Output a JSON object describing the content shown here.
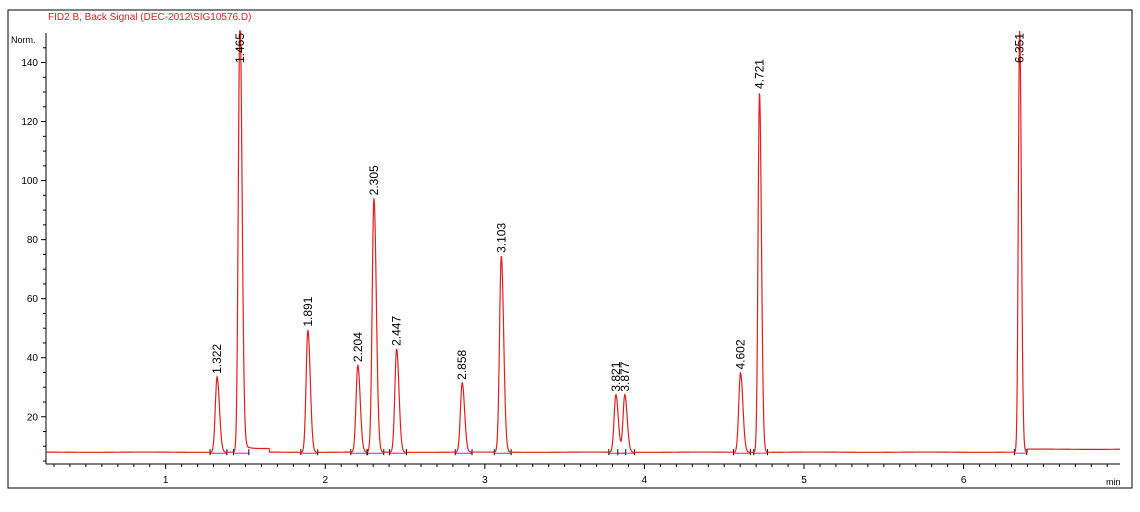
{
  "header": {
    "title": "FID2 B, Back Signal (DEC-2012\\SIG10576.D)"
  },
  "colors": {
    "signal": "#e0201e",
    "baseline": "#d014d0",
    "axis": "#000000"
  },
  "chart_data": {
    "type": "line",
    "title": "FID2 B, Back Signal (DEC-2012\\SIG10576.D)",
    "xlabel": "min",
    "ylabel": "Norm.",
    "xlim": [
      0.25,
      6.98
    ],
    "ylim": [
      4,
      150
    ],
    "x_ticks": [
      1,
      2,
      3,
      4,
      5,
      6
    ],
    "y_ticks": [
      20,
      40,
      60,
      80,
      100,
      120,
      140
    ],
    "grid": false,
    "baseline_level": 8,
    "series": [
      {
        "peaks": [
          {
            "rt": 1.322,
            "height": 33.5,
            "label": "1.322"
          },
          {
            "rt": 1.465,
            "height": 152,
            "label": "1.465"
          },
          {
            "rt": 1.891,
            "height": 49.5,
            "label": "1.891"
          },
          {
            "rt": 2.204,
            "height": 37.5,
            "label": "2.204"
          },
          {
            "rt": 2.305,
            "height": 94,
            "label": "2.305"
          },
          {
            "rt": 2.447,
            "height": 43,
            "label": "2.447"
          },
          {
            "rt": 2.858,
            "height": 31.5,
            "label": "2.858"
          },
          {
            "rt": 3.103,
            "height": 74.5,
            "label": "3.103"
          },
          {
            "rt": 3.821,
            "height": 27.5,
            "label": "3.821"
          },
          {
            "rt": 3.877,
            "height": 27.5,
            "label": "3.877"
          },
          {
            "rt": 4.602,
            "height": 35,
            "label": "4.602"
          },
          {
            "rt": 4.721,
            "height": 130,
            "label": "4.721"
          },
          {
            "rt": 6.351,
            "height": 152,
            "label": "6.351"
          }
        ]
      }
    ]
  }
}
